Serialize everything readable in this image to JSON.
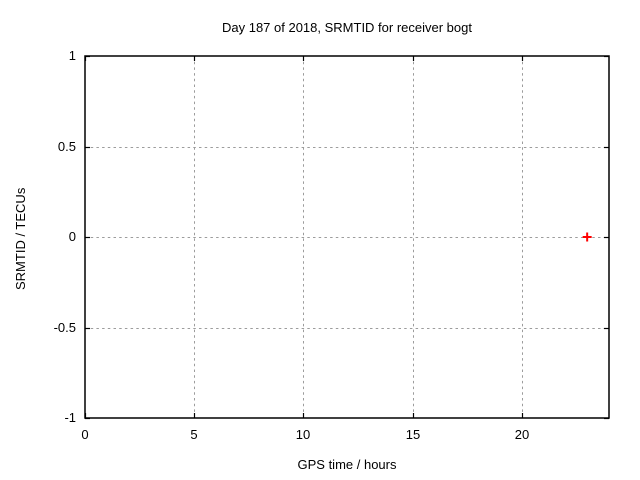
{
  "chart_data": {
    "type": "scatter",
    "title": "Day 187 of 2018, SRMTID for receiver bogt",
    "xlabel": "GPS time / hours",
    "ylabel": "SRMTID / TECUs",
    "xlim": [
      0,
      24
    ],
    "ylim": [
      -1,
      1
    ],
    "xticks": [
      0,
      5,
      10,
      15,
      20
    ],
    "xtick_labels": [
      "0",
      "5",
      "10",
      "15",
      "20"
    ],
    "yticks": [
      -1,
      -0.5,
      0,
      0.5,
      1
    ],
    "ytick_labels": [
      "-1",
      "-0.5",
      "0",
      "0.5",
      "1"
    ],
    "grid": true,
    "legend": "none",
    "series": [
      {
        "marker": "plus",
        "color": "#ff0000",
        "points": [
          {
            "x": 23,
            "y": 0
          }
        ]
      }
    ]
  },
  "colors": {
    "background": "#ffffff",
    "border": "#000000",
    "grid": "#9c9c9c",
    "text": "#000000",
    "point": "#ff0000"
  }
}
